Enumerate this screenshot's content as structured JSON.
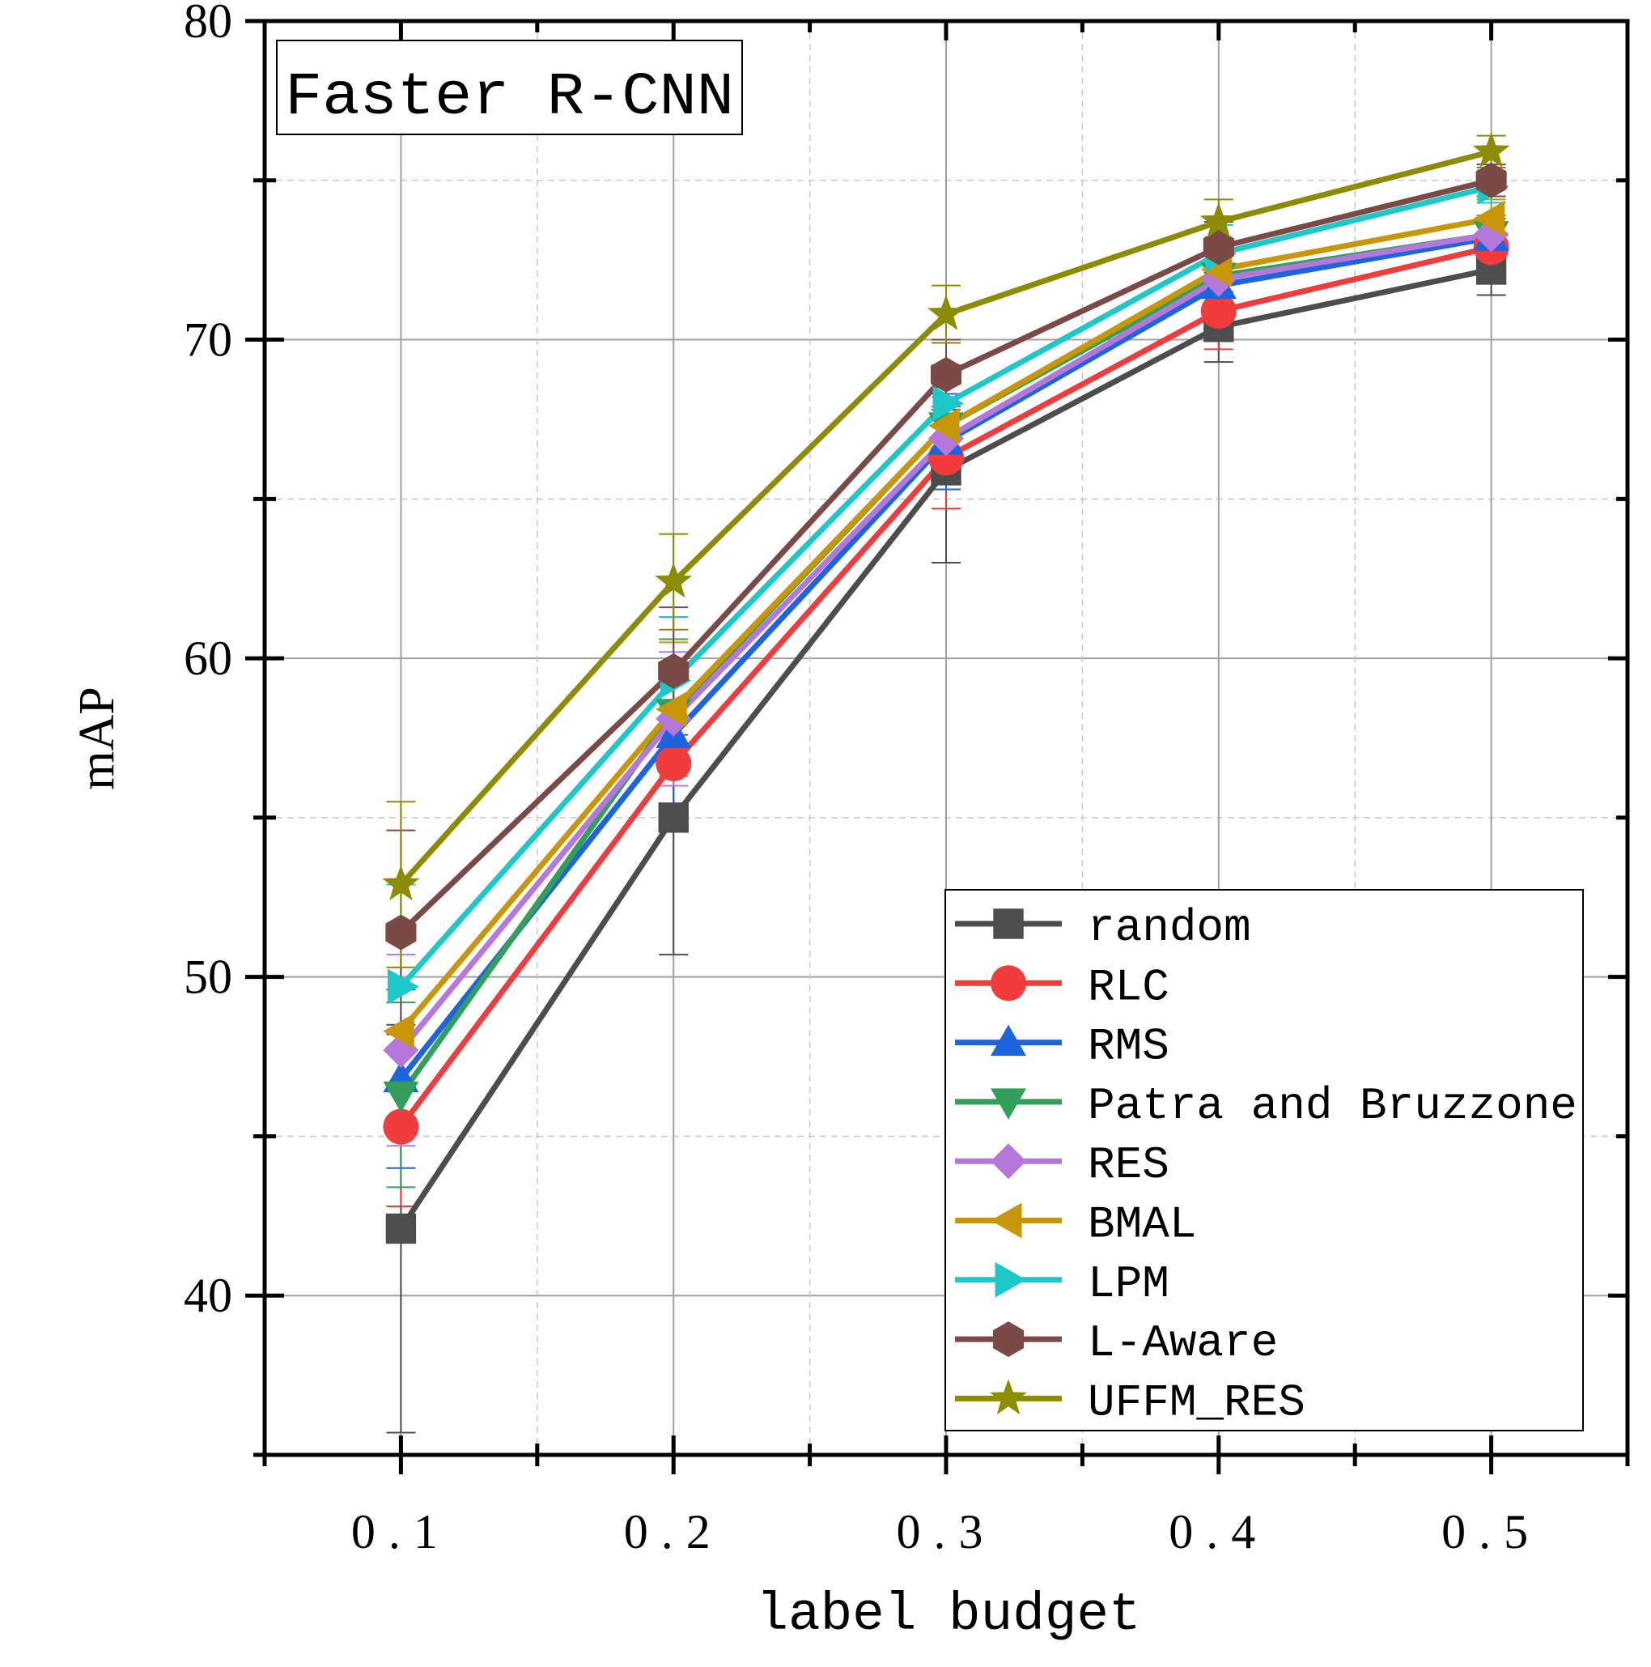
{
  "chart_data": {
    "type": "line",
    "title": "Faster R-CNN",
    "xlabel": "label budget",
    "ylabel": "mAP",
    "x": [
      0.1,
      0.2,
      0.3,
      0.4,
      0.5
    ],
    "x_tick_labels": [
      "0.1",
      "0.2",
      "0.3",
      "0.4",
      "0.5"
    ],
    "xlim": [
      0.05,
      0.55
    ],
    "ylim": [
      35,
      80
    ],
    "y_ticks": [
      40,
      50,
      60,
      70,
      80
    ],
    "y_tick_labels": [
      "40",
      "50",
      "60",
      "70",
      "80"
    ],
    "grid": true,
    "legend_position": "bottom-right",
    "series": [
      {
        "name": "random",
        "color": "#4d4d4d",
        "marker": "square",
        "values": [
          42.1,
          55.0,
          65.9,
          70.4,
          72.2
        ],
        "err": [
          6.4,
          4.3,
          2.9,
          1.1,
          0.8
        ]
      },
      {
        "name": "RLC",
        "color": "#f03c3c",
        "marker": "circle",
        "values": [
          45.3,
          56.7,
          66.3,
          70.9,
          72.9
        ],
        "err": [
          2.5,
          2.0,
          1.6,
          1.2,
          0.7
        ]
      },
      {
        "name": "RMS",
        "color": "#1e64dc",
        "marker": "triangle-up",
        "values": [
          46.8,
          57.6,
          66.8,
          71.7,
          73.2
        ],
        "err": [
          2.8,
          2.2,
          1.5,
          1.0,
          0.6
        ]
      },
      {
        "name": "Patra and Bruzzone",
        "color": "#32a05a",
        "marker": "triangle-down",
        "values": [
          46.3,
          58.3,
          67.3,
          72.0,
          73.3
        ],
        "err": [
          2.9,
          2.3,
          1.4,
          0.9,
          0.6
        ]
      },
      {
        "name": "RES",
        "color": "#b478dc",
        "marker": "diamond",
        "values": [
          47.7,
          58.1,
          66.9,
          71.9,
          73.3
        ],
        "err": [
          3.0,
          2.1,
          1.3,
          0.9,
          0.6
        ]
      },
      {
        "name": "BMAL",
        "color": "#c8960a",
        "marker": "triangle-left",
        "values": [
          48.3,
          58.4,
          67.3,
          72.2,
          73.8
        ],
        "err": [
          3.0,
          2.1,
          1.3,
          0.9,
          0.6
        ]
      },
      {
        "name": "LPM",
        "color": "#1ec8c8",
        "marker": "triangle-right",
        "values": [
          49.7,
          59.3,
          68.0,
          72.7,
          74.8
        ],
        "err": [
          3.2,
          2.0,
          1.2,
          0.9,
          0.5
        ]
      },
      {
        "name": "L-Aware",
        "color": "#7a4a46",
        "marker": "hexagon",
        "values": [
          51.4,
          59.6,
          68.9,
          72.9,
          75.0
        ],
        "err": [
          3.2,
          2.0,
          1.1,
          0.8,
          0.5
        ]
      },
      {
        "name": "UFFM_RES",
        "color": "#8c8c00",
        "marker": "star",
        "values": [
          52.9,
          62.4,
          70.8,
          73.7,
          75.9
        ],
        "err": [
          2.6,
          1.5,
          0.9,
          0.7,
          0.5
        ]
      }
    ]
  }
}
